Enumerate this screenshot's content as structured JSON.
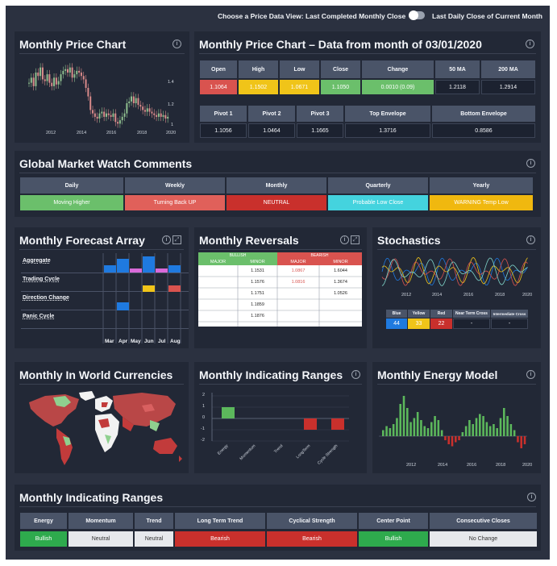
{
  "topbar": {
    "left_label": "Choose a Price Data View: Last Completed Monthly Close",
    "right_label": "Last Daily Close of Current Month"
  },
  "panels": {
    "monthly_price_chart": {
      "title": "Monthly Price Chart",
      "y_ticks": [
        "1.4",
        "1.2",
        "1"
      ],
      "x_ticks": [
        "2012",
        "2014",
        "2016",
        "2018",
        "2020"
      ],
      "candles": [
        1.3,
        1.33,
        1.28,
        1.36,
        1.34,
        1.39,
        1.32,
        1.31,
        1.35,
        1.3,
        1.28,
        1.33,
        1.29,
        1.31,
        1.35,
        1.37,
        1.38,
        1.36,
        1.39,
        1.33,
        1.35,
        1.37,
        1.36,
        1.34,
        1.32,
        1.27,
        1.22,
        1.14,
        1.12,
        1.1,
        1.09,
        1.12,
        1.13,
        1.1,
        1.12,
        1.11,
        1.1,
        1.12,
        1.07,
        1.06,
        1.08,
        1.1,
        1.12,
        1.18,
        1.19,
        1.22,
        1.18,
        1.21,
        1.17,
        1.16,
        1.14,
        1.13,
        1.15,
        1.13,
        1.12,
        1.11,
        1.1,
        1.12,
        1.1,
        1.11,
        1.09,
        1.1
      ]
    },
    "price_data": {
      "title": "Monthly Price Chart – Data from month of 03/01/2020",
      "headers": [
        "Open",
        "High",
        "Low",
        "Close",
        "Change",
        "50 MA",
        "200 MA"
      ],
      "values": [
        "1.1064",
        "1.1502",
        "1.0671",
        "1.1050",
        "0.0010 (0.09)",
        "1.2118",
        "1.2914"
      ],
      "pivot_headers": [
        "Pivot 1",
        "Pivot 2",
        "Pivot 3",
        "Top Envelope",
        "Bottom Envelope"
      ],
      "pivot_values": [
        "1.1056",
        "1.0464",
        "1.1665",
        "1.3716",
        "0.8586"
      ]
    },
    "global_market": {
      "title": "Global Market Watch Comments",
      "headers": [
        "Daily",
        "Weekly",
        "Monthly",
        "Quarterly",
        "Yearly"
      ],
      "values": [
        "Moving Higher",
        "Turning Back UP",
        "NEUTRAL",
        "Probable Low Close",
        "WARNING Temp Low"
      ]
    },
    "forecast": {
      "title": "Monthly Forecast Array",
      "rows": [
        "Aggregate",
        "Trading Cycle",
        "Direction Change",
        "Panic Cycle"
      ],
      "months": [
        "Mar",
        "Apr",
        "May",
        "Jun",
        "Jul",
        "Aug"
      ]
    },
    "reversals": {
      "title": "Monthly Reversals",
      "bullish": "BULLISH",
      "bearish": "BEARISH",
      "major": "MAJOR",
      "minor": "MINOR",
      "bullish_minor": [
        "1.1531",
        "1.1576",
        "1.1751",
        "1.1859",
        "1.1876"
      ],
      "bearish_major": [
        "1.0867",
        "1.0816"
      ],
      "bearish_minor": [
        "1.6044",
        "1.3674",
        "1.0526"
      ]
    },
    "stochastics": {
      "title": "Stochastics",
      "x_ticks": [
        "2012",
        "2014",
        "2016",
        "2018",
        "2020"
      ],
      "headers": [
        "Blue",
        "Yellow",
        "Red",
        "Near Term Cross",
        "Intermediate Cross"
      ],
      "values": [
        "44",
        "33",
        "22",
        "-",
        "-"
      ]
    },
    "currencies": {
      "title": "Monthly In World Currencies"
    },
    "indicating_chart": {
      "title": "Monthly Indicating Ranges",
      "y_ticks": [
        "2",
        "1",
        "0",
        "-1",
        "-2"
      ]
    },
    "energy": {
      "title": "Monthly Energy Model",
      "x_ticks": [
        "2012",
        "2014",
        "2016",
        "2018",
        "2020"
      ]
    },
    "indicating_table": {
      "title": "Monthly Indicating Ranges",
      "headers": [
        "Energy",
        "Momentum",
        "Trend",
        "Long Term Trend",
        "Cyclical Strength",
        "Center Point",
        "Consecutive Closes"
      ],
      "values": [
        "Bullish",
        "Neutral",
        "Neutral",
        "Bearish",
        "Bearish",
        "Bullish",
        "No Change"
      ]
    }
  },
  "chart_data": [
    {
      "type": "bar",
      "title": "Monthly Indicating Ranges",
      "categories": [
        "Energy",
        "Momentum",
        "Trend",
        "LongTerm",
        "Cycle Strength"
      ],
      "values": [
        1,
        0,
        0,
        -1,
        -1
      ],
      "ylim": [
        -2,
        2
      ],
      "colors": [
        "#5cb85c",
        "#5cb85c",
        "#5cb85c",
        "#c9302c",
        "#c9302c"
      ]
    },
    {
      "type": "bar",
      "title": "Monthly Energy Model",
      "values": [
        0.3,
        0.5,
        0.4,
        0.6,
        0.9,
        1.6,
        2.0,
        1.4,
        0.7,
        0.9,
        1.2,
        0.8,
        0.5,
        0.4,
        0.7,
        1.0,
        0.8,
        0.3,
        -0.2,
        -0.4,
        -0.5,
        -0.3,
        -0.2,
        0.2,
        0.5,
        0.8,
        0.6,
        0.9,
        1.1,
        1.0,
        0.7,
        0.5,
        0.6,
        0.4,
        0.9,
        1.4,
        1.0,
        0.6,
        0.3,
        -0.3,
        -0.6,
        -0.4
      ],
      "colors": {
        "positive": "#5cb85c",
        "negative": "#c9302c"
      }
    }
  ],
  "colors": {
    "bg": "#2b3140",
    "panel": "#222836",
    "blue": "#1f7ae0",
    "magenta": "#d96ad9",
    "yellow": "#f0c419",
    "red": "#d9534f"
  }
}
